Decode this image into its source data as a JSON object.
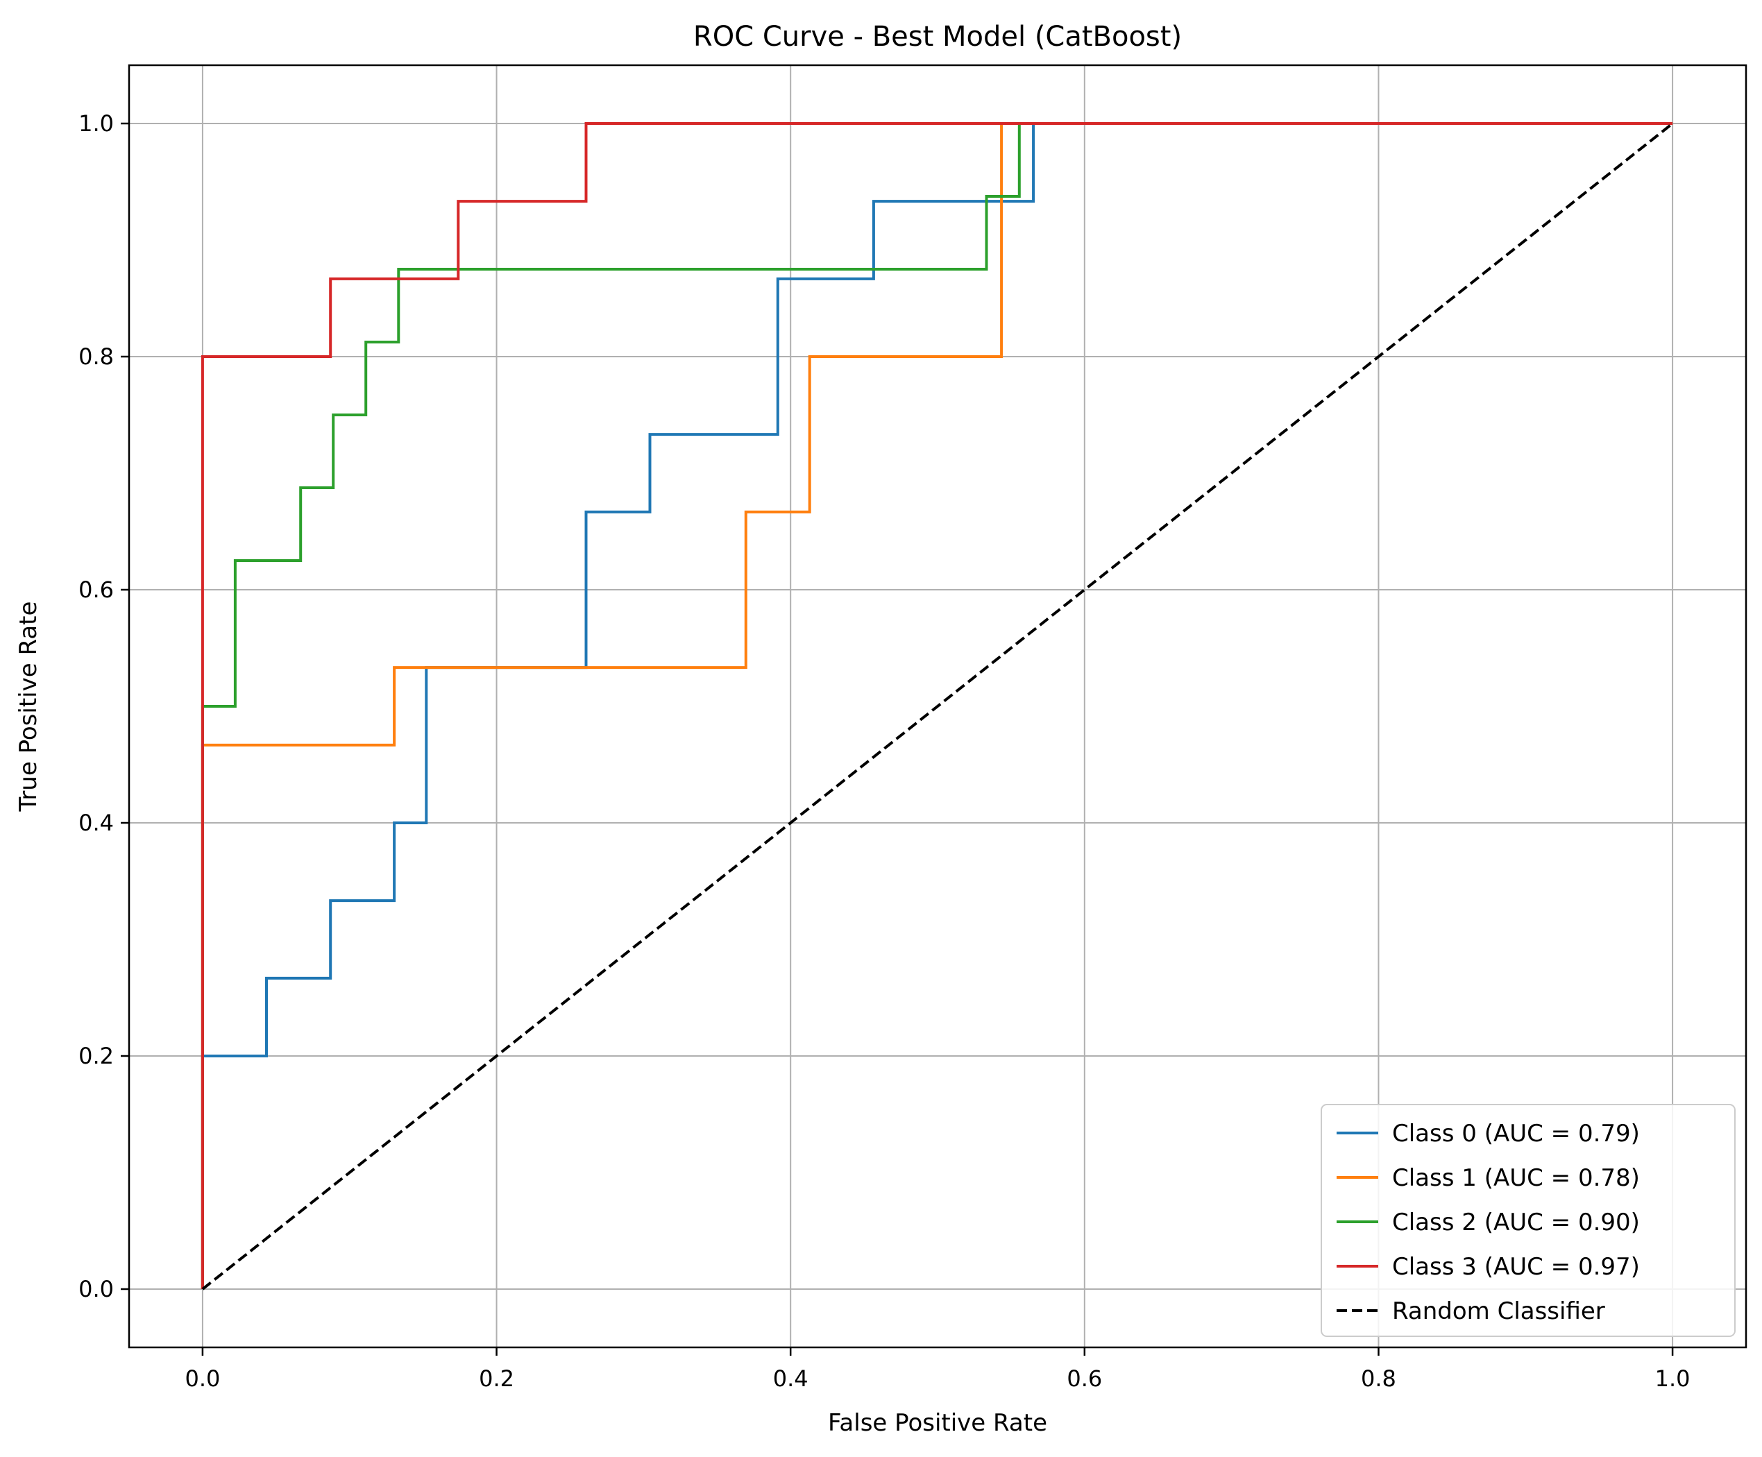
{
  "chart_data": {
    "type": "line",
    "title": "ROC Curve - Best Model (CatBoost)",
    "xlabel": "False Positive Rate",
    "ylabel": "True Positive Rate",
    "xlim": [
      -0.05,
      1.05
    ],
    "ylim": [
      -0.05,
      1.05
    ],
    "grid": true,
    "legend_position": "bottom-right",
    "x_ticks": [
      0.0,
      0.2,
      0.4,
      0.6,
      0.8,
      1.0
    ],
    "x_tick_labels": [
      "0.0",
      "0.2",
      "0.4",
      "0.6",
      "0.8",
      "1.0"
    ],
    "y_ticks": [
      0.0,
      0.2,
      0.4,
      0.6,
      0.8,
      1.0
    ],
    "y_tick_labels": [
      "0.0",
      "0.2",
      "0.4",
      "0.6",
      "0.8",
      "1.0"
    ],
    "series": [
      {
        "name": "Class 0 (AUC = 0.79)",
        "color": "#1f77b4",
        "dash": "solid",
        "x": [
          0.0,
          0.0,
          0.0435,
          0.0435,
          0.087,
          0.087,
          0.1304,
          0.1304,
          0.1522,
          0.1522,
          0.2609,
          0.2609,
          0.3043,
          0.3043,
          0.3913,
          0.3913,
          0.4565,
          0.4565,
          0.5652,
          0.5652,
          1.0
        ],
        "y": [
          0.0,
          0.2,
          0.2,
          0.2667,
          0.2667,
          0.3333,
          0.3333,
          0.4,
          0.4,
          0.5333,
          0.5333,
          0.6667,
          0.6667,
          0.7333,
          0.7333,
          0.8667,
          0.8667,
          0.9333,
          0.9333,
          1.0,
          1.0
        ]
      },
      {
        "name": "Class 1 (AUC = 0.78)",
        "color": "#ff7f0e",
        "dash": "solid",
        "x": [
          0.0,
          0.0,
          0.1304,
          0.1304,
          0.3696,
          0.3696,
          0.413,
          0.413,
          0.5435,
          0.5435,
          1.0
        ],
        "y": [
          0.0,
          0.4667,
          0.4667,
          0.5333,
          0.5333,
          0.6667,
          0.6667,
          0.8,
          0.8,
          1.0,
          1.0
        ]
      },
      {
        "name": "Class 2 (AUC = 0.90)",
        "color": "#2ca02c",
        "dash": "solid",
        "x": [
          0.0,
          0.0,
          0.0222,
          0.0222,
          0.0667,
          0.0667,
          0.0889,
          0.0889,
          0.1111,
          0.1111,
          0.1333,
          0.1333,
          0.5333,
          0.5333,
          0.5556,
          0.5556,
          1.0
        ],
        "y": [
          0.0,
          0.5,
          0.5,
          0.625,
          0.625,
          0.6875,
          0.6875,
          0.75,
          0.75,
          0.8125,
          0.8125,
          0.875,
          0.875,
          0.9375,
          0.9375,
          1.0,
          1.0
        ]
      },
      {
        "name": "Class 3 (AUC = 0.97)",
        "color": "#d62728",
        "dash": "solid",
        "x": [
          0.0,
          0.0,
          0.087,
          0.087,
          0.1739,
          0.1739,
          0.2609,
          0.2609,
          1.0
        ],
        "y": [
          0.0,
          0.8,
          0.8,
          0.8667,
          0.8667,
          0.9333,
          0.9333,
          1.0,
          1.0
        ]
      },
      {
        "name": "Random Classifier",
        "color": "#000000",
        "dash": "dashed",
        "x": [
          0.0,
          1.0
        ],
        "y": [
          0.0,
          1.0
        ]
      }
    ]
  }
}
